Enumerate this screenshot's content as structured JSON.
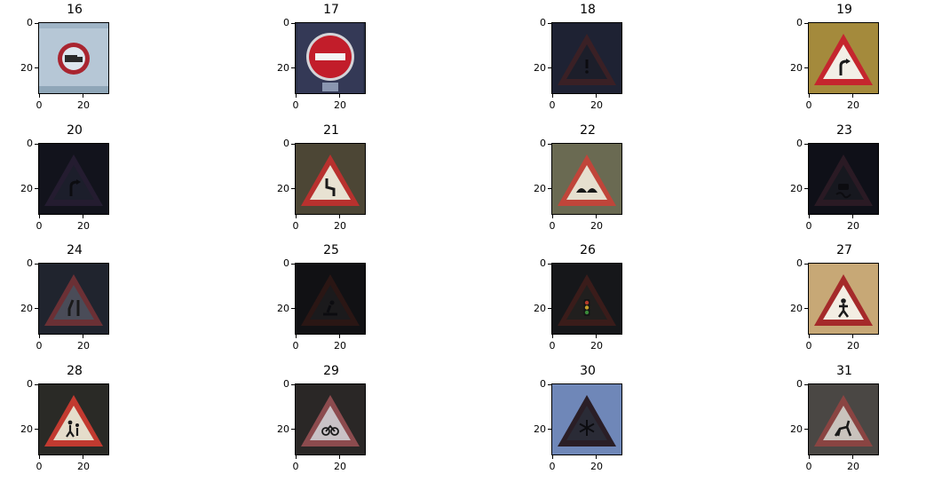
{
  "figure": {
    "panels": [
      {
        "title": "16",
        "yticks": [
          "0",
          "20"
        ],
        "xticks": [
          "0",
          "20"
        ],
        "content": {
          "bg": "#b6c7d6",
          "sign": "circle-prohibition",
          "rim": "#a92530",
          "fill": "#dde6ee",
          "symbol": "truck-icon"
        }
      },
      {
        "title": "17",
        "yticks": [
          "0",
          "20"
        ],
        "xticks": [
          "0",
          "20"
        ],
        "content": {
          "bg": "#2b3148",
          "sign": "no-entry",
          "rim": "#d4d4d8",
          "fill": "#c21d2a",
          "symbol": "white-bar-icon"
        }
      },
      {
        "title": "18",
        "yticks": [
          "0",
          "20"
        ],
        "xticks": [
          "0",
          "20"
        ],
        "content": {
          "bg": "#1e2233",
          "sign": "triangle",
          "rim": "#3a2025",
          "fill": "#1c1e2a",
          "symbol": "exclamation-icon"
        }
      },
      {
        "title": "19",
        "yticks": [
          "0",
          "20"
        ],
        "xticks": [
          "0",
          "20"
        ],
        "content": {
          "bg": "#a48a3c",
          "sign": "triangle",
          "rim": "#c5262e",
          "fill": "#f2efe6",
          "symbol": "curve-right-icon"
        }
      },
      {
        "title": "20",
        "yticks": [
          "0",
          "20"
        ],
        "xticks": [
          "0",
          "20"
        ],
        "content": {
          "bg": "#12131c",
          "sign": "triangle",
          "rim": "#241c30",
          "fill": "#1c1e2b",
          "symbol": "curve-right-icon"
        }
      },
      {
        "title": "21",
        "yticks": [
          "0",
          "20"
        ],
        "xticks": [
          "0",
          "20"
        ],
        "content": {
          "bg": "#4c4635",
          "sign": "triangle",
          "rim": "#b8312e",
          "fill": "#e8e2d2",
          "symbol": "double-curve-icon"
        }
      },
      {
        "title": "22",
        "yticks": [
          "0",
          "20"
        ],
        "xticks": [
          "0",
          "20"
        ],
        "content": {
          "bg": "#6a6a52",
          "sign": "triangle",
          "rim": "#c0453a",
          "fill": "#e6dfcf",
          "symbol": "bumpy-road-icon"
        }
      },
      {
        "title": "23",
        "yticks": [
          "0",
          "20"
        ],
        "xticks": [
          "0",
          "20"
        ],
        "content": {
          "bg": "#0f1018",
          "sign": "triangle",
          "rim": "#2a1a24",
          "fill": "#17181f",
          "symbol": "slippery-road-icon"
        }
      },
      {
        "title": "24",
        "yticks": [
          "0",
          "20"
        ],
        "xticks": [
          "0",
          "20"
        ],
        "content": {
          "bg": "#20242e",
          "sign": "triangle",
          "rim": "#6b3035",
          "fill": "#4a4c58",
          "symbol": "road-narrows-icon"
        }
      },
      {
        "title": "25",
        "yticks": [
          "0",
          "20"
        ],
        "xticks": [
          "0",
          "20"
        ],
        "content": {
          "bg": "#111114",
          "sign": "triangle",
          "rim": "#2a1614",
          "fill": "#1b1a1c",
          "symbol": "road-work-icon"
        }
      },
      {
        "title": "26",
        "yticks": [
          "0",
          "20"
        ],
        "xticks": [
          "0",
          "20"
        ],
        "content": {
          "bg": "#16171a",
          "sign": "triangle",
          "rim": "#3a1c1a",
          "fill": "#211f1e",
          "symbol": "traffic-signal-icon"
        }
      },
      {
        "title": "27",
        "yticks": [
          "0",
          "20"
        ],
        "xticks": [
          "0",
          "20"
        ],
        "content": {
          "bg": "#c7a876",
          "sign": "triangle",
          "rim": "#a52a2a",
          "fill": "#f3eee3",
          "symbol": "pedestrian-icon"
        }
      },
      {
        "title": "28",
        "yticks": [
          "0",
          "20"
        ],
        "xticks": [
          "0",
          "20"
        ],
        "content": {
          "bg": "#2a2a26",
          "sign": "triangle",
          "rim": "#c23a30",
          "fill": "#e5ddcb",
          "symbol": "children-crossing-icon"
        }
      },
      {
        "title": "29",
        "yticks": [
          "0",
          "20"
        ],
        "xticks": [
          "0",
          "20"
        ],
        "content": {
          "bg": "#2a2726",
          "sign": "triangle",
          "rim": "#8c4b4e",
          "fill": "#c9c2c6",
          "symbol": "bicycle-icon"
        }
      },
      {
        "title": "30",
        "yticks": [
          "0",
          "20"
        ],
        "xticks": [
          "0",
          "20"
        ],
        "content": {
          "bg": "#6f87b8",
          "sign": "triangle",
          "rim": "#2a1e26",
          "fill": "#2a2b36",
          "symbol": "snowflake-icon"
        }
      },
      {
        "title": "31",
        "yticks": [
          "0",
          "20"
        ],
        "xticks": [
          "0",
          "20"
        ],
        "content": {
          "bg": "#4a4744",
          "sign": "triangle",
          "rim": "#8a4442",
          "fill": "#c9c3bd",
          "symbol": "deer-icon"
        }
      }
    ]
  }
}
